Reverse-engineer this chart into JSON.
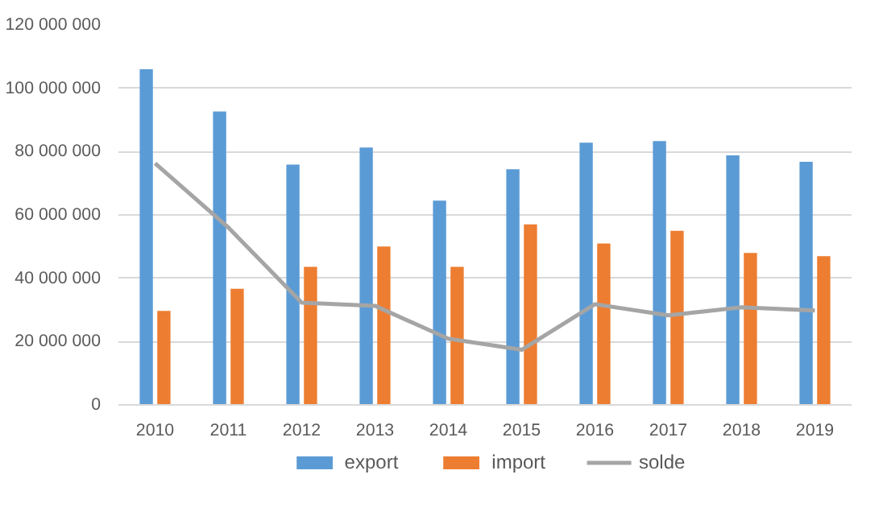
{
  "chart_data": {
    "type": "bar",
    "categories": [
      "2010",
      "2011",
      "2012",
      "2013",
      "2014",
      "2015",
      "2016",
      "2017",
      "2018",
      "2019"
    ],
    "series": [
      {
        "name": "export",
        "color": "#5b9bd5",
        "values": [
          106000000,
          92700000,
          75900000,
          81300000,
          64500000,
          74400000,
          82800000,
          83300000,
          78800000,
          76800000
        ]
      },
      {
        "name": "import",
        "color": "#ed7d31",
        "values": [
          29700000,
          36700000,
          43600000,
          50000000,
          43600000,
          57000000,
          51000000,
          55000000,
          48000000,
          47000000
        ]
      },
      {
        "name": "solde",
        "type": "line",
        "color": "#a5a5a5",
        "values": [
          76300000,
          56000000,
          32300000,
          31300000,
          20900000,
          17400000,
          31800000,
          28300000,
          30800000,
          29800000
        ]
      }
    ],
    "ylim": [
      0,
      120000000
    ],
    "yticks": [
      {
        "value": 0,
        "label": "0"
      },
      {
        "value": 20000000,
        "label": "20 000 000"
      },
      {
        "value": 40000000,
        "label": "40 000 000"
      },
      {
        "value": 60000000,
        "label": "60 000 000"
      },
      {
        "value": 80000000,
        "label": "80 000 000"
      },
      {
        "value": 100000000,
        "label": "100 000 000"
      },
      {
        "value": 120000000,
        "label": "120 000 000"
      }
    ],
    "grid": "y",
    "legend": "bottom"
  }
}
